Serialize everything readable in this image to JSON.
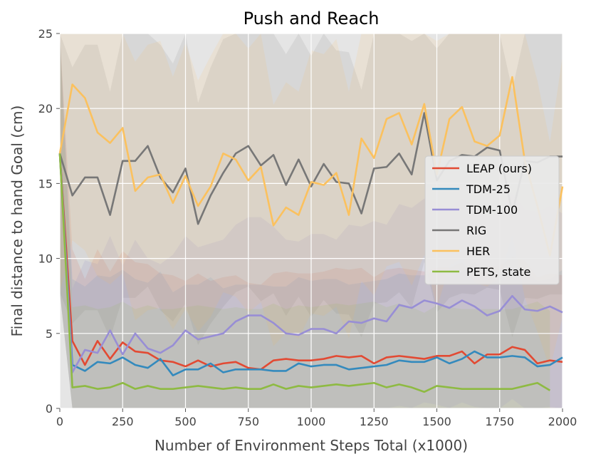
{
  "chart_data": {
    "type": "line",
    "title": "Push and Reach",
    "xlabel": "Number of Environment Steps Total (x1000)",
    "ylabel": "Final distance to hand Goal (cm)",
    "xlim": [
      0,
      2000
    ],
    "ylim": [
      0,
      25
    ],
    "xticks": [
      0,
      250,
      500,
      750,
      1000,
      1250,
      1500,
      1750,
      2000
    ],
    "yticks": [
      0,
      5,
      10,
      15,
      20,
      25
    ],
    "grid": true,
    "legend_position": "center-right",
    "x": [
      0,
      50,
      100,
      150,
      200,
      250,
      300,
      350,
      400,
      450,
      500,
      550,
      600,
      650,
      700,
      750,
      800,
      850,
      900,
      950,
      1000,
      1050,
      1100,
      1150,
      1200,
      1250,
      1300,
      1350,
      1400,
      1450,
      1500,
      1550,
      1600,
      1650,
      1700,
      1750,
      1800,
      1850,
      1900,
      1950,
      2000
    ],
    "series": [
      {
        "name": "LEAP (ours)",
        "color": "#e24a33",
        "band_opacity": 0.12,
        "values": [
          17.0,
          4.5,
          2.9,
          4.5,
          3.3,
          4.4,
          3.8,
          3.7,
          3.2,
          3.1,
          2.8,
          3.2,
          2.8,
          3.0,
          3.1,
          2.7,
          2.6,
          3.2,
          3.3,
          3.2,
          3.2,
          3.3,
          3.5,
          3.4,
          3.5,
          3.0,
          3.4,
          3.5,
          3.4,
          3.3,
          3.5,
          3.5,
          3.8,
          3.0,
          3.6,
          3.6,
          4.1,
          3.9,
          3.0,
          3.2,
          3.1
        ]
      },
      {
        "name": "TDM-25",
        "color": "#348abd",
        "band_opacity": 0.12,
        "values": [
          17.0,
          2.9,
          2.5,
          3.1,
          3.0,
          3.4,
          2.9,
          2.7,
          3.3,
          2.2,
          2.6,
          2.6,
          3.0,
          2.4,
          2.6,
          2.6,
          2.6,
          2.5,
          2.5,
          3.0,
          2.8,
          2.9,
          2.9,
          2.6,
          2.7,
          2.8,
          2.9,
          3.2,
          3.1,
          3.1,
          3.4,
          3.0,
          3.3,
          3.8,
          3.4,
          3.4,
          3.5,
          3.4,
          2.8,
          2.9,
          3.4
        ]
      },
      {
        "name": "TDM-100",
        "color": "#988ed5",
        "band_opacity": 0.14,
        "values": [
          17.0,
          2.4,
          3.9,
          3.7,
          5.2,
          3.6,
          5.0,
          4.0,
          3.7,
          4.2,
          5.2,
          4.6,
          4.8,
          5.0,
          5.8,
          6.2,
          6.2,
          5.7,
          5.0,
          4.9,
          5.3,
          5.3,
          5.0,
          5.8,
          5.7,
          6.0,
          5.8,
          6.9,
          6.7,
          7.2,
          7.0,
          6.7,
          7.2,
          6.8,
          6.2,
          6.5,
          7.5,
          6.6,
          6.5,
          6.8,
          6.4
        ]
      },
      {
        "name": "RIG",
        "color": "#777777",
        "band_opacity": 0.12,
        "values": [
          17.0,
          14.2,
          15.4,
          15.4,
          12.9,
          16.5,
          16.5,
          17.5,
          15.4,
          14.4,
          16.0,
          12.3,
          14.2,
          15.7,
          17.0,
          17.5,
          16.2,
          16.9,
          14.9,
          16.6,
          14.8,
          16.3,
          15.1,
          15.0,
          13.0,
          16.0,
          16.1,
          17.0,
          15.6,
          19.7,
          15.2,
          16.5,
          16.9,
          16.8,
          17.4,
          17.2,
          13.0,
          16.5,
          16.4,
          16.8,
          16.8
        ]
      },
      {
        "name": "HER",
        "color": "#fbc15e",
        "band_opacity": 0.12,
        "values": [
          17.0,
          21.6,
          20.7,
          18.4,
          17.7,
          18.7,
          14.5,
          15.4,
          15.6,
          13.7,
          15.5,
          13.5,
          14.8,
          17.0,
          16.6,
          15.2,
          16.1,
          12.2,
          13.4,
          12.9,
          15.1,
          14.9,
          15.7,
          12.9,
          18.0,
          16.7,
          19.3,
          19.7,
          17.6,
          20.3,
          15.6,
          19.3,
          20.1,
          17.8,
          17.5,
          18.2,
          22.1,
          16.5,
          13.5,
          10.2,
          14.8
        ]
      },
      {
        "name": "PETS, state",
        "color": "#8eba42",
        "band_opacity": 0.12,
        "values": [
          17.0,
          1.4,
          1.5,
          1.3,
          1.4,
          1.7,
          1.3,
          1.5,
          1.3,
          1.3,
          1.4,
          1.5,
          1.4,
          1.3,
          1.4,
          1.3,
          1.3,
          1.6,
          1.3,
          1.5,
          1.4,
          1.5,
          1.6,
          1.5,
          1.6,
          1.7,
          1.4,
          1.6,
          1.4,
          1.1,
          1.5,
          1.4,
          1.3,
          1.3,
          1.3,
          1.3,
          1.3,
          1.5,
          1.7,
          1.2,
          null
        ]
      }
    ]
  }
}
